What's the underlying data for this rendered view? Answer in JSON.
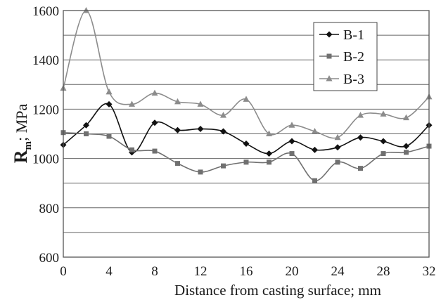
{
  "chart_data": {
    "type": "line",
    "title": "",
    "xlabel": "Distance from casting surface; mm",
    "ylabel": {
      "main": "R",
      "sub": "m",
      "rest": "; MPa"
    },
    "x": [
      0,
      2,
      4,
      6,
      8,
      10,
      12,
      14,
      16,
      18,
      20,
      22,
      24,
      26,
      28,
      30,
      32
    ],
    "x_ticks": [
      "0",
      "4",
      "8",
      "12",
      "16",
      "20",
      "24",
      "28",
      "32"
    ],
    "y_ticks": [
      "600",
      "800",
      "1000",
      "1200",
      "1400",
      "1600"
    ],
    "xlim": [
      0,
      32
    ],
    "ylim": [
      600,
      1600
    ],
    "grid": "horizontal every 100",
    "legend_position": "top-right",
    "series": [
      {
        "name": "B-1",
        "marker": "diamond",
        "color": "#111111",
        "values": [
          1055,
          1135,
          1220,
          1025,
          1145,
          1115,
          1120,
          1110,
          1060,
          1020,
          1070,
          1035,
          1045,
          1085,
          1070,
          1050,
          1135
        ]
      },
      {
        "name": "B-2",
        "marker": "square",
        "color": "#707070",
        "values": [
          1105,
          1100,
          1090,
          1035,
          1030,
          980,
          945,
          970,
          985,
          985,
          1020,
          910,
          985,
          960,
          1020,
          1025,
          1050
        ]
      },
      {
        "name": "B-3",
        "marker": "triangle",
        "color": "#8c8c8c",
        "values": [
          1285,
          1600,
          1270,
          1220,
          1265,
          1230,
          1220,
          1175,
          1240,
          1100,
          1135,
          1110,
          1085,
          1175,
          1180,
          1165,
          1250
        ]
      }
    ]
  }
}
